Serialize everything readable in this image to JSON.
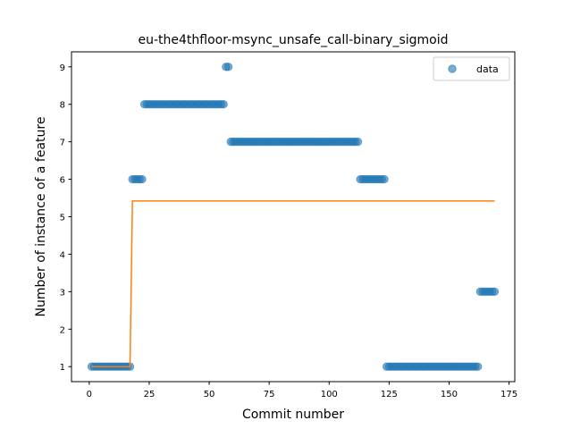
{
  "chart_data": {
    "type": "scatter",
    "title": "eu-the4thfloor-msync_unsafe_call-binary_sigmoid",
    "xlabel": "Commit number",
    "ylabel": "Number of instance of a feature",
    "xlim": [
      -7.4,
      177.4
    ],
    "ylim": [
      0.6,
      9.4
    ],
    "xticks": [
      0,
      25,
      50,
      75,
      100,
      125,
      150,
      175
    ],
    "yticks": [
      1,
      2,
      3,
      4,
      5,
      6,
      7,
      8,
      9
    ],
    "legend": {
      "position": "upper-right",
      "entries": [
        "data"
      ]
    },
    "series": [
      {
        "name": "data",
        "kind": "scatter",
        "color": "#1f77b4",
        "segments": [
          {
            "x_start": 1,
            "x_end": 17,
            "y": 1
          },
          {
            "x_start": 18,
            "x_end": 22,
            "y": 6
          },
          {
            "x_start": 23,
            "x_end": 56,
            "y": 8
          },
          {
            "x_start": 57,
            "x_end": 58,
            "y": 9
          },
          {
            "x_start": 59,
            "x_end": 112,
            "y": 7
          },
          {
            "x_start": 113,
            "x_end": 123,
            "y": 6
          },
          {
            "x_start": 124,
            "x_end": 162,
            "y": 1
          },
          {
            "x_start": 163,
            "x_end": 169,
            "y": 3
          }
        ]
      },
      {
        "kind": "line",
        "color": "#ff7f0e",
        "points": [
          [
            1,
            1
          ],
          [
            17,
            1
          ],
          [
            18,
            5.42
          ],
          [
            169,
            5.42
          ]
        ]
      }
    ]
  }
}
